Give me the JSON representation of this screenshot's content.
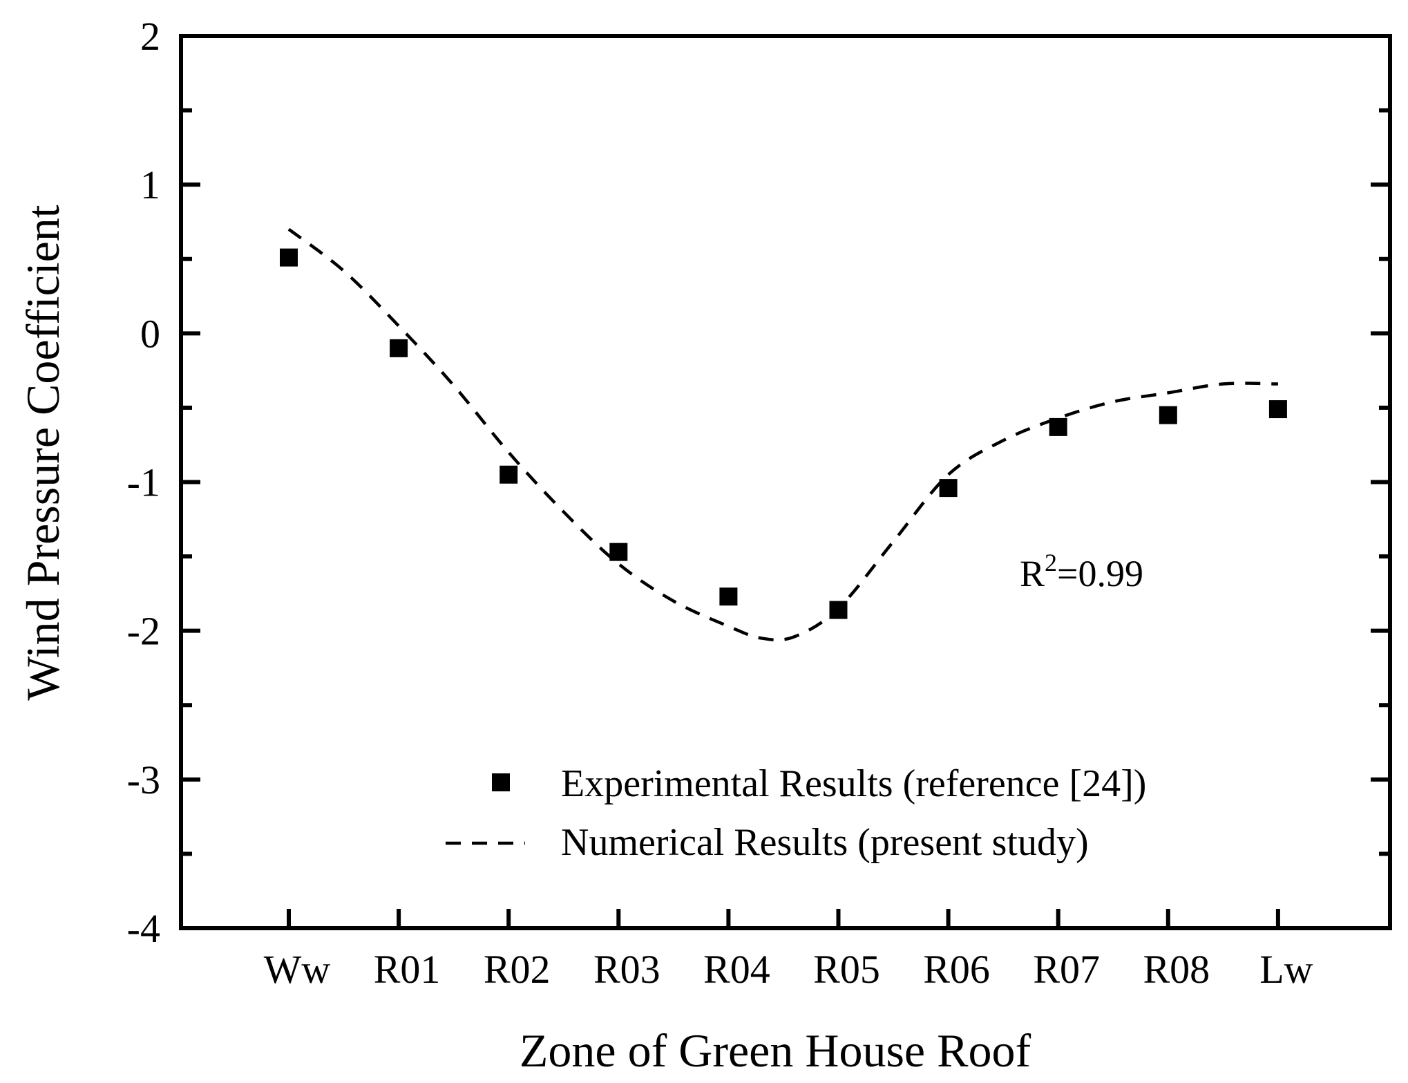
{
  "chart_data": {
    "type": "line",
    "title": "",
    "xlabel": "Zone of Green House Roof",
    "ylabel": "Wind Pressure Coefficient",
    "categories": [
      "Ww",
      "R01",
      "R02",
      "R03",
      "R04",
      "R05",
      "R06",
      "R07",
      "R08",
      "Lw"
    ],
    "ylim": [
      -4,
      2
    ],
    "yticks": [
      2,
      1,
      0,
      -1,
      -2,
      -3,
      -4
    ],
    "ytick_labels": [
      "2",
      "1",
      "0",
      "-1",
      "-2",
      "-3",
      "-4"
    ],
    "grid": false,
    "legend_position": "bottom-right",
    "series": [
      {
        "name": "Experimental Results (reference [24])",
        "style": "square-markers",
        "values": [
          0.51,
          -0.1,
          -0.95,
          -1.47,
          -1.77,
          -1.86,
          -1.04,
          -0.63,
          -0.55,
          -0.51
        ]
      },
      {
        "name": "Numerical Results (present study)",
        "style": "dashed-line",
        "curve": [
          {
            "x": 0,
            "y": 0.7
          },
          {
            "x": 0.5,
            "y": 0.42
          },
          {
            "x": 1,
            "y": 0.05
          },
          {
            "x": 1.5,
            "y": -0.35
          },
          {
            "x": 2,
            "y": -0.8
          },
          {
            "x": 2.5,
            "y": -1.2
          },
          {
            "x": 3,
            "y": -1.55
          },
          {
            "x": 3.5,
            "y": -1.8
          },
          {
            "x": 4,
            "y": -1.97
          },
          {
            "x": 4.3,
            "y": -2.05
          },
          {
            "x": 4.6,
            "y": -2.04
          },
          {
            "x": 5,
            "y": -1.85
          },
          {
            "x": 5.5,
            "y": -1.4
          },
          {
            "x": 6,
            "y": -0.95
          },
          {
            "x": 6.5,
            "y": -0.72
          },
          {
            "x": 7,
            "y": -0.57
          },
          {
            "x": 7.5,
            "y": -0.46
          },
          {
            "x": 8,
            "y": -0.4
          },
          {
            "x": 8.5,
            "y": -0.34
          },
          {
            "x": 9,
            "y": -0.34
          }
        ]
      }
    ],
    "annotation": {
      "base": "R",
      "superscript": "2",
      "rest": "=0.99",
      "x": 6.65,
      "y": -1.7
    },
    "colors": {
      "marks": "#000000",
      "axes": "#000000",
      "background": "#ffffff"
    }
  }
}
